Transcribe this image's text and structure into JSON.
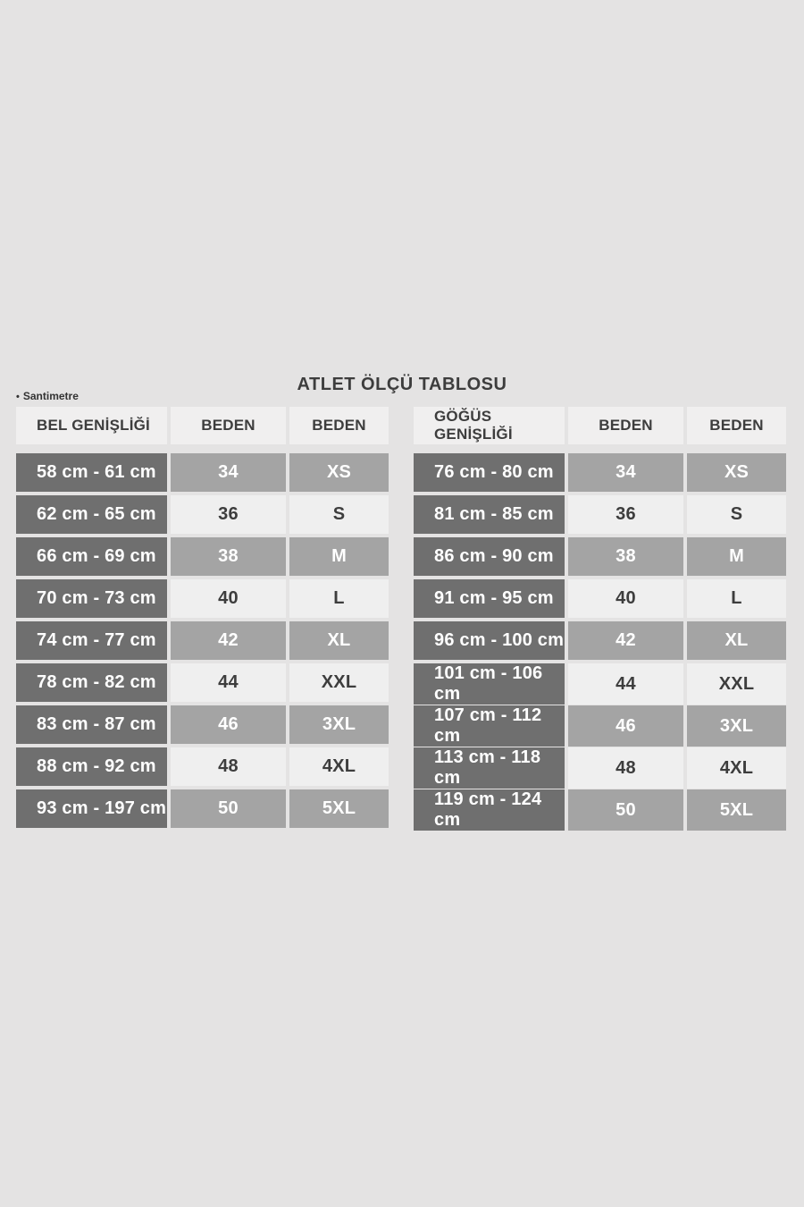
{
  "page": {
    "title": "ATLET ÖLÇÜ TABLOSU",
    "unit_bullet": "•",
    "unit_note": "Santimetre"
  },
  "colors": {
    "background": "#e4e3e3",
    "header_cell": "#f0efef",
    "dark_cell": "#6f6f6f",
    "medium_cell": "#a4a4a4",
    "light_cell": "#efefef",
    "dark_text": "#3d3d3d",
    "light_text": "#ffffff"
  },
  "chart_data": [
    {
      "type": "table",
      "title": "ATLET ÖLÇÜ TABLOSU",
      "name": "waist-size-table",
      "columns": [
        "BEL GENİŞLİĞİ",
        "BEDEN",
        "BEDEN"
      ],
      "rows": [
        [
          "58 cm - 61 cm",
          "34",
          "XS"
        ],
        [
          "62 cm - 65 cm",
          "36",
          "S"
        ],
        [
          "66 cm - 69 cm",
          "38",
          "M"
        ],
        [
          "70 cm - 73 cm",
          "40",
          "L"
        ],
        [
          "74 cm - 77 cm",
          "42",
          "XL"
        ],
        [
          "78 cm - 82 cm",
          "44",
          "XXL"
        ],
        [
          "83 cm - 87 cm",
          "46",
          "3XL"
        ],
        [
          "88 cm - 92 cm",
          "48",
          "4XL"
        ],
        [
          "93 cm - 197 cm",
          "50",
          "5XL"
        ]
      ]
    },
    {
      "type": "table",
      "title": "ATLET ÖLÇÜ TABLOSU",
      "name": "chest-size-table",
      "columns": [
        "GÖĞÜS GENİŞLİĞİ",
        "BEDEN",
        "BEDEN"
      ],
      "rows": [
        [
          "76 cm - 80 cm",
          "34",
          "XS"
        ],
        [
          "81 cm - 85 cm",
          "36",
          "S"
        ],
        [
          "86 cm - 90 cm",
          "38",
          "M"
        ],
        [
          "91 cm - 95 cm",
          "40",
          "L"
        ],
        [
          "96 cm - 100 cm",
          "42",
          "XL"
        ],
        [
          "101 cm - 106 cm",
          "44",
          "XXL"
        ],
        [
          "107 cm - 112 cm",
          "46",
          "3XL"
        ],
        [
          "113 cm - 118 cm",
          "48",
          "4XL"
        ],
        [
          "119 cm - 124 cm",
          "50",
          "5XL"
        ]
      ]
    }
  ]
}
